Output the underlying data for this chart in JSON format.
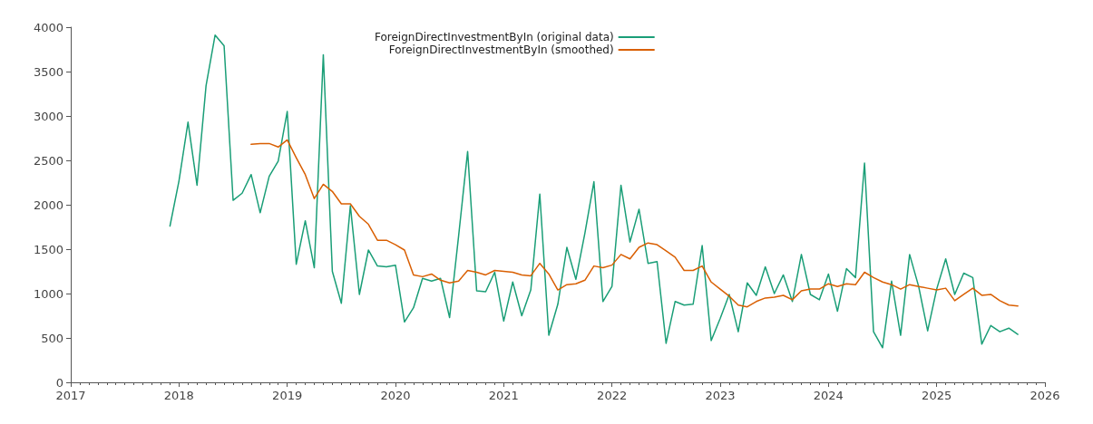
{
  "chart_data": {
    "type": "line",
    "xlim": [
      "2017",
      "2026"
    ],
    "xticks": [
      "2017",
      "2018",
      "2019",
      "2020",
      "2021",
      "2022",
      "2023",
      "2024",
      "2025",
      "2026"
    ],
    "ylim": [
      0,
      4000
    ],
    "yticks": [
      0,
      500,
      1000,
      1500,
      2000,
      2500,
      3000,
      3500,
      4000
    ],
    "grid": false,
    "legend": "top left",
    "marker": "none",
    "line_style": "solid",
    "series": [
      {
        "name": "ForeignDirectInvestmentByIn (original data)",
        "color": "#1a9e77",
        "x": [
          "2017-12",
          "2018-01",
          "2018-02",
          "2018-03",
          "2018-04",
          "2018-05",
          "2018-06",
          "2018-07",
          "2018-08",
          "2018-09",
          "2018-10",
          "2018-11",
          "2018-12",
          "2019-01",
          "2019-02",
          "2019-03",
          "2019-04",
          "2019-05",
          "2019-06",
          "2019-07",
          "2019-08",
          "2019-09",
          "2019-10",
          "2019-11",
          "2019-12",
          "2020-01",
          "2020-02",
          "2020-03",
          "2020-04",
          "2020-05",
          "2020-06",
          "2020-07",
          "2020-08",
          "2020-09",
          "2020-10",
          "2020-11",
          "2020-12",
          "2021-01",
          "2021-02",
          "2021-03",
          "2021-04",
          "2021-05",
          "2021-06",
          "2021-07",
          "2021-08",
          "2021-09",
          "2021-10",
          "2021-11",
          "2021-12",
          "2022-01",
          "2022-02",
          "2022-03",
          "2022-04",
          "2022-05",
          "2022-06",
          "2022-07",
          "2022-08",
          "2022-09",
          "2022-10",
          "2022-11",
          "2022-12",
          "2023-01",
          "2023-02",
          "2023-03",
          "2023-04",
          "2023-05",
          "2023-06",
          "2023-07",
          "2023-08",
          "2023-09",
          "2023-10",
          "2023-11",
          "2023-12",
          "2024-01",
          "2024-02",
          "2024-03",
          "2024-04",
          "2024-05",
          "2024-06",
          "2024-07",
          "2024-08",
          "2024-09",
          "2024-10",
          "2024-11",
          "2024-12",
          "2025-01",
          "2025-02",
          "2025-03",
          "2025-04",
          "2025-05",
          "2025-06",
          "2025-07",
          "2025-08",
          "2025-09",
          "2025-10"
        ],
        "values": [
          1760,
          2270,
          2930,
          2220,
          3340,
          3910,
          3790,
          2050,
          2130,
          2340,
          1910,
          2320,
          2490,
          3050,
          1330,
          1820,
          1290,
          3690,
          1250,
          890,
          1990,
          990,
          1490,
          1310,
          1300,
          1320,
          680,
          840,
          1170,
          1140,
          1170,
          730,
          1650,
          2600,
          1030,
          1020,
          1240,
          690,
          1130,
          750,
          1040,
          2120,
          530,
          880,
          1520,
          1160,
          1680,
          2260,
          910,
          1080,
          2220,
          1580,
          1950,
          1340,
          1360,
          440,
          910,
          870,
          880,
          1540,
          470,
          720,
          990,
          570,
          1120,
          980,
          1300,
          1000,
          1210,
          910,
          1440,
          990,
          930,
          1220,
          800,
          1280,
          1180,
          2470,
          570,
          390,
          1140,
          530,
          1440,
          1080,
          580,
          1050,
          1390,
          990,
          1230,
          1180,
          430,
          640,
          570,
          610,
          540
        ]
      },
      {
        "name": "ForeignDirectInvestmentByIn (smoothed)",
        "color": "#d95f02",
        "x": [
          "2018-09",
          "2018-10",
          "2018-11",
          "2018-12",
          "2019-01",
          "2019-02",
          "2019-03",
          "2019-04",
          "2019-05",
          "2019-06",
          "2019-07",
          "2019-08",
          "2019-09",
          "2019-10",
          "2019-11",
          "2019-12",
          "2020-01",
          "2020-02",
          "2020-03",
          "2020-04",
          "2020-05",
          "2020-06",
          "2020-07",
          "2020-08",
          "2020-09",
          "2020-10",
          "2020-11",
          "2020-12",
          "2021-01",
          "2021-02",
          "2021-03",
          "2021-04",
          "2021-05",
          "2021-06",
          "2021-07",
          "2021-08",
          "2021-09",
          "2021-10",
          "2021-11",
          "2021-12",
          "2022-01",
          "2022-02",
          "2022-03",
          "2022-04",
          "2022-05",
          "2022-06",
          "2022-07",
          "2022-08",
          "2022-09",
          "2022-10",
          "2022-11",
          "2022-12",
          "2023-01",
          "2023-02",
          "2023-03",
          "2023-04",
          "2023-05",
          "2023-06",
          "2023-07",
          "2023-08",
          "2023-09",
          "2023-10",
          "2023-11",
          "2023-12",
          "2024-01",
          "2024-02",
          "2024-03",
          "2024-04",
          "2024-05",
          "2024-06",
          "2024-07",
          "2024-08",
          "2024-09",
          "2024-10",
          "2024-11",
          "2024-12",
          "2025-01",
          "2025-02",
          "2025-03",
          "2025-04",
          "2025-05",
          "2025-06",
          "2025-07",
          "2025-08",
          "2025-09",
          "2025-10"
        ],
        "values": [
          2680,
          2690,
          2690,
          2650,
          2730,
          2530,
          2340,
          2070,
          2230,
          2150,
          2010,
          2010,
          1870,
          1780,
          1600,
          1600,
          1550,
          1490,
          1210,
          1190,
          1220,
          1150,
          1120,
          1140,
          1260,
          1240,
          1210,
          1260,
          1250,
          1240,
          1210,
          1200,
          1340,
          1220,
          1040,
          1100,
          1110,
          1150,
          1310,
          1290,
          1320,
          1440,
          1390,
          1520,
          1570,
          1550,
          1480,
          1410,
          1260,
          1260,
          1310,
          1130,
          1050,
          970,
          870,
          850,
          910,
          950,
          960,
          980,
          930,
          1030,
          1050,
          1050,
          1110,
          1080,
          1110,
          1100,
          1240,
          1180,
          1130,
          1100,
          1050,
          1100,
          1080,
          1060,
          1040,
          1060,
          920,
          990,
          1060,
          980,
          990,
          920,
          870,
          860
        ]
      }
    ]
  }
}
